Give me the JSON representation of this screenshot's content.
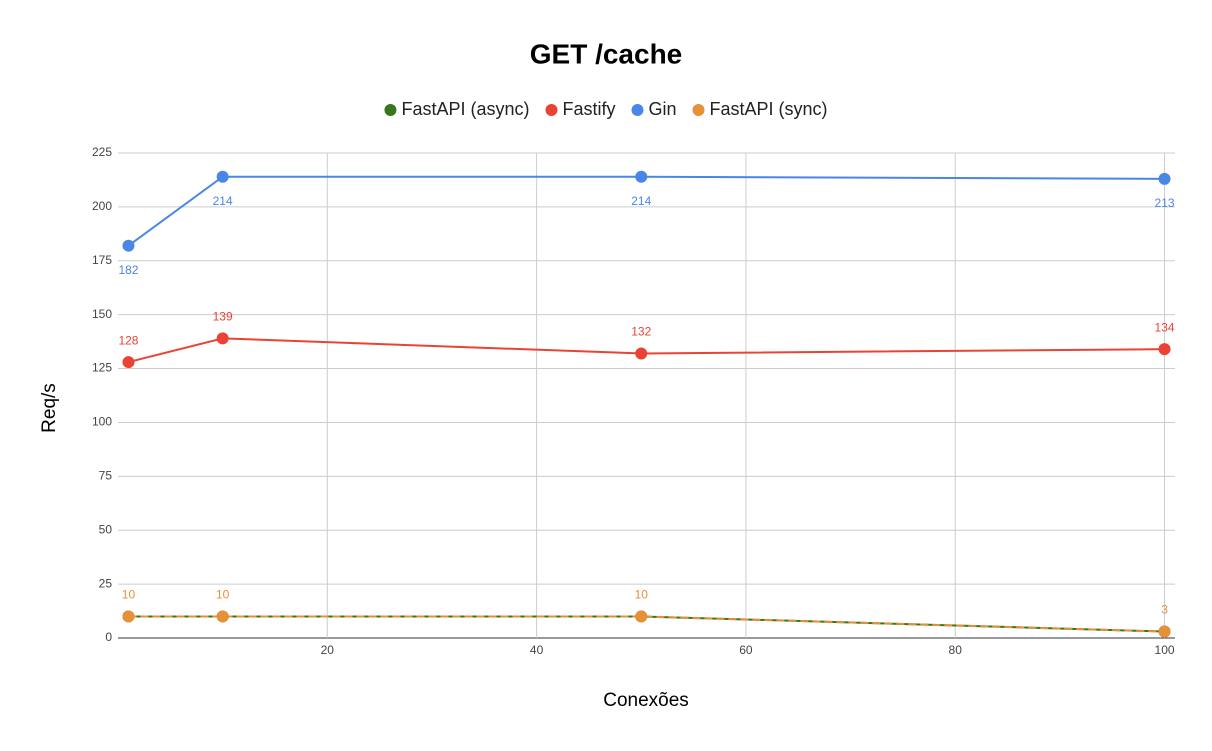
{
  "chart_data": {
    "type": "line",
    "title": "GET /cache",
    "x_label": "Conexões",
    "y_label": "Req/s",
    "x": [
      1,
      10,
      50,
      100
    ],
    "series": [
      {
        "name": "FastAPI (async)",
        "color": "#38761d",
        "values": [
          10,
          10,
          10,
          3
        ],
        "data_labels": false
      },
      {
        "name": "Fastify",
        "color": "#ea4335",
        "values": [
          128,
          139,
          132,
          134
        ],
        "data_labels": true,
        "label_position": "above"
      },
      {
        "name": "Gin",
        "color": "#4a86e8",
        "values": [
          182,
          214,
          214,
          213
        ],
        "data_labels": true,
        "label_position": "below"
      },
      {
        "name": "FastAPI (sync)",
        "color": "#e69138",
        "values": [
          10,
          10,
          10,
          3
        ],
        "data_labels": true,
        "label_position": "above",
        "dashed": true
      }
    ],
    "xlim": [
      0,
      101
    ],
    "xticks": [
      20,
      40,
      60,
      80,
      100
    ],
    "ylim": [
      0,
      225
    ],
    "yticks": [
      0,
      25,
      50,
      75,
      100,
      125,
      150,
      175,
      200,
      225
    ],
    "grid": true,
    "legend": "top"
  }
}
